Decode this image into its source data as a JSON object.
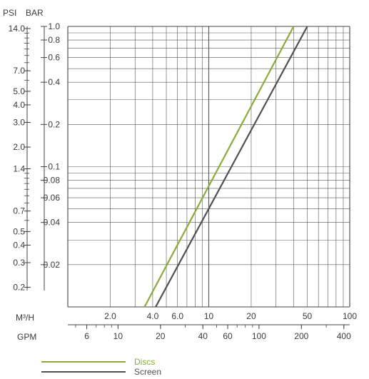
{
  "chart_data": {
    "type": "line",
    "scale": "log-log",
    "grid": true,
    "legend_position": "bottom",
    "y_axes": {
      "psi_title": "PSI",
      "bar_title": "BAR",
      "ylim_bar": [
        0.01,
        1.0
      ],
      "bar_major_ticks": [
        "1.0",
        "0.8",
        "0.6",
        "0.4",
        "0.2",
        "0.1",
        "0.08",
        "0.06",
        "0.04",
        "0.02"
      ],
      "bar_major_values": [
        1.0,
        0.8,
        0.6,
        0.4,
        0.2,
        0.1,
        0.08,
        0.06,
        0.04,
        0.02
      ],
      "psi_ticks": [
        "14.0",
        "7.0",
        "5.0",
        "4.0",
        "3.0",
        "2.0",
        "1.4",
        "0.7",
        "0.5",
        "0.4",
        "0.3",
        "0.2"
      ],
      "psi_values": [
        14.0,
        7.0,
        5.0,
        4.0,
        3.0,
        2.0,
        1.4,
        0.7,
        0.5,
        0.4,
        0.3,
        0.2
      ]
    },
    "x_axes": {
      "m3h_title": "M³/H",
      "gpm_title": "GPM",
      "xlim_m3h": [
        1.0,
        100
      ],
      "m3h_ticks": [
        "2.0",
        "4.0",
        "6.0",
        "10",
        "20",
        "50",
        "100"
      ],
      "m3h_values": [
        2,
        4,
        6,
        10,
        20,
        50,
        100
      ],
      "gpm_ticks": [
        "6",
        "10",
        "20",
        "40",
        "60",
        "100",
        "200",
        "400"
      ],
      "gpm_values": [
        6,
        10,
        20,
        40,
        60,
        100,
        200,
        400
      ]
    },
    "series": [
      {
        "name": "Discs",
        "color": "#8aab3c",
        "x_m3h": [
          3.5,
          40
        ],
        "y_bar": [
          0.01,
          1.0
        ]
      },
      {
        "name": "Screen",
        "color": "#4d5157",
        "x_m3h": [
          4.2,
          50
        ],
        "y_bar": [
          0.01,
          1.0
        ]
      }
    ]
  }
}
